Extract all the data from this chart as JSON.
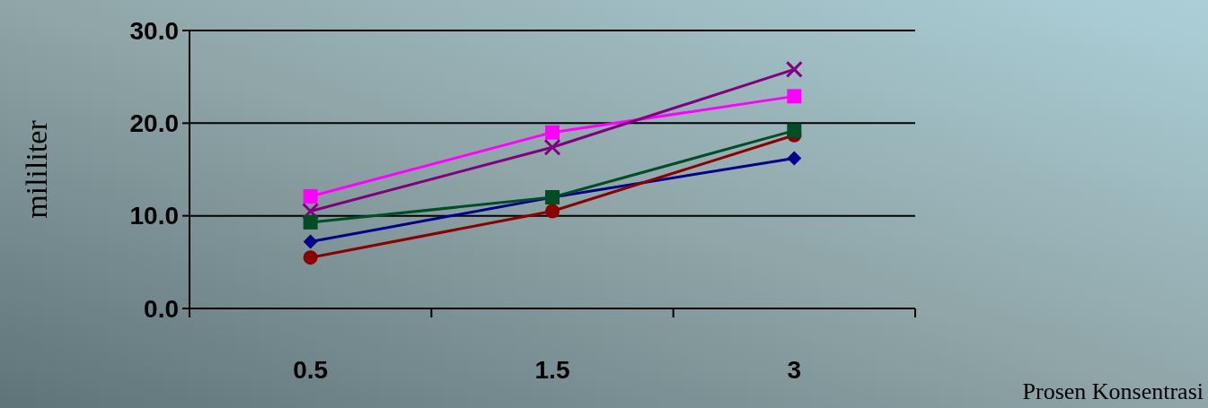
{
  "chart_data": {
    "type": "line",
    "xlabel": "Prosen Konsentrasi",
    "ylabel": "mililiter",
    "categories": [
      "0.5",
      "1.5",
      "3"
    ],
    "series": [
      {
        "color": "#00008b",
        "marker": "diamond",
        "values": [
          7.2,
          12.0,
          16.2
        ]
      },
      {
        "color": "#8b0000",
        "marker": "circle",
        "values": [
          5.5,
          10.5,
          18.7
        ]
      },
      {
        "color": "#ff00ff",
        "marker": "square",
        "values": [
          12.1,
          19.0,
          22.9
        ]
      },
      {
        "color": "#800080",
        "marker": "cross",
        "values": [
          10.5,
          17.4,
          25.8
        ]
      },
      {
        "color": "#004d26",
        "marker": "square",
        "values": [
          9.3,
          12.0,
          19.2
        ]
      }
    ],
    "ylim": [
      0,
      30
    ],
    "yticks": [
      {
        "value": 0,
        "label": "0.0"
      },
      {
        "value": 10,
        "label": "10.0"
      },
      {
        "value": 20,
        "label": "20.0"
      },
      {
        "value": 30,
        "label": "30.0"
      }
    ],
    "grid": "y"
  }
}
